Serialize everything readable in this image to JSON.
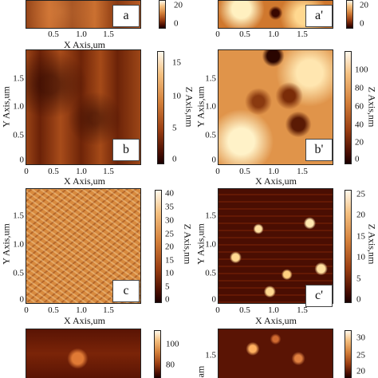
{
  "panels": {
    "a": {
      "tag": "a",
      "colorbar": [
        "20",
        "0"
      ]
    },
    "a2": {
      "tag": "a'",
      "colorbar": [
        "20",
        "0"
      ]
    },
    "b": {
      "tag": "b",
      "colorbar": [
        "15",
        "10",
        "5",
        "0"
      ]
    },
    "b2": {
      "tag": "b'",
      "colorbar": [
        "100",
        "80",
        "60",
        "40",
        "20",
        "0"
      ]
    },
    "c": {
      "tag": "c",
      "colorbar": [
        "40",
        "35",
        "30",
        "25",
        "20",
        "15",
        "10",
        "5",
        "0"
      ]
    },
    "c2": {
      "tag": "c'",
      "colorbar": [
        "25",
        "20",
        "15",
        "10",
        "5",
        "0"
      ]
    },
    "d": {
      "colorbar": [
        "100",
        "80"
      ]
    },
    "d2": {
      "colorbar": [
        "30",
        "25",
        "20"
      ]
    }
  },
  "axes": {
    "x_ticks": [
      "0",
      "0.5",
      "1.0",
      "1.5"
    ],
    "y_ticks": [
      "1.5",
      "1.0",
      "0.5",
      "0"
    ],
    "y_ticks_partial": [
      "1.5"
    ],
    "x_label": "X Axis,um",
    "y_label": "Y Axis,um",
    "y_label_partial": "am",
    "z_label": "Z Axis,nm"
  }
}
